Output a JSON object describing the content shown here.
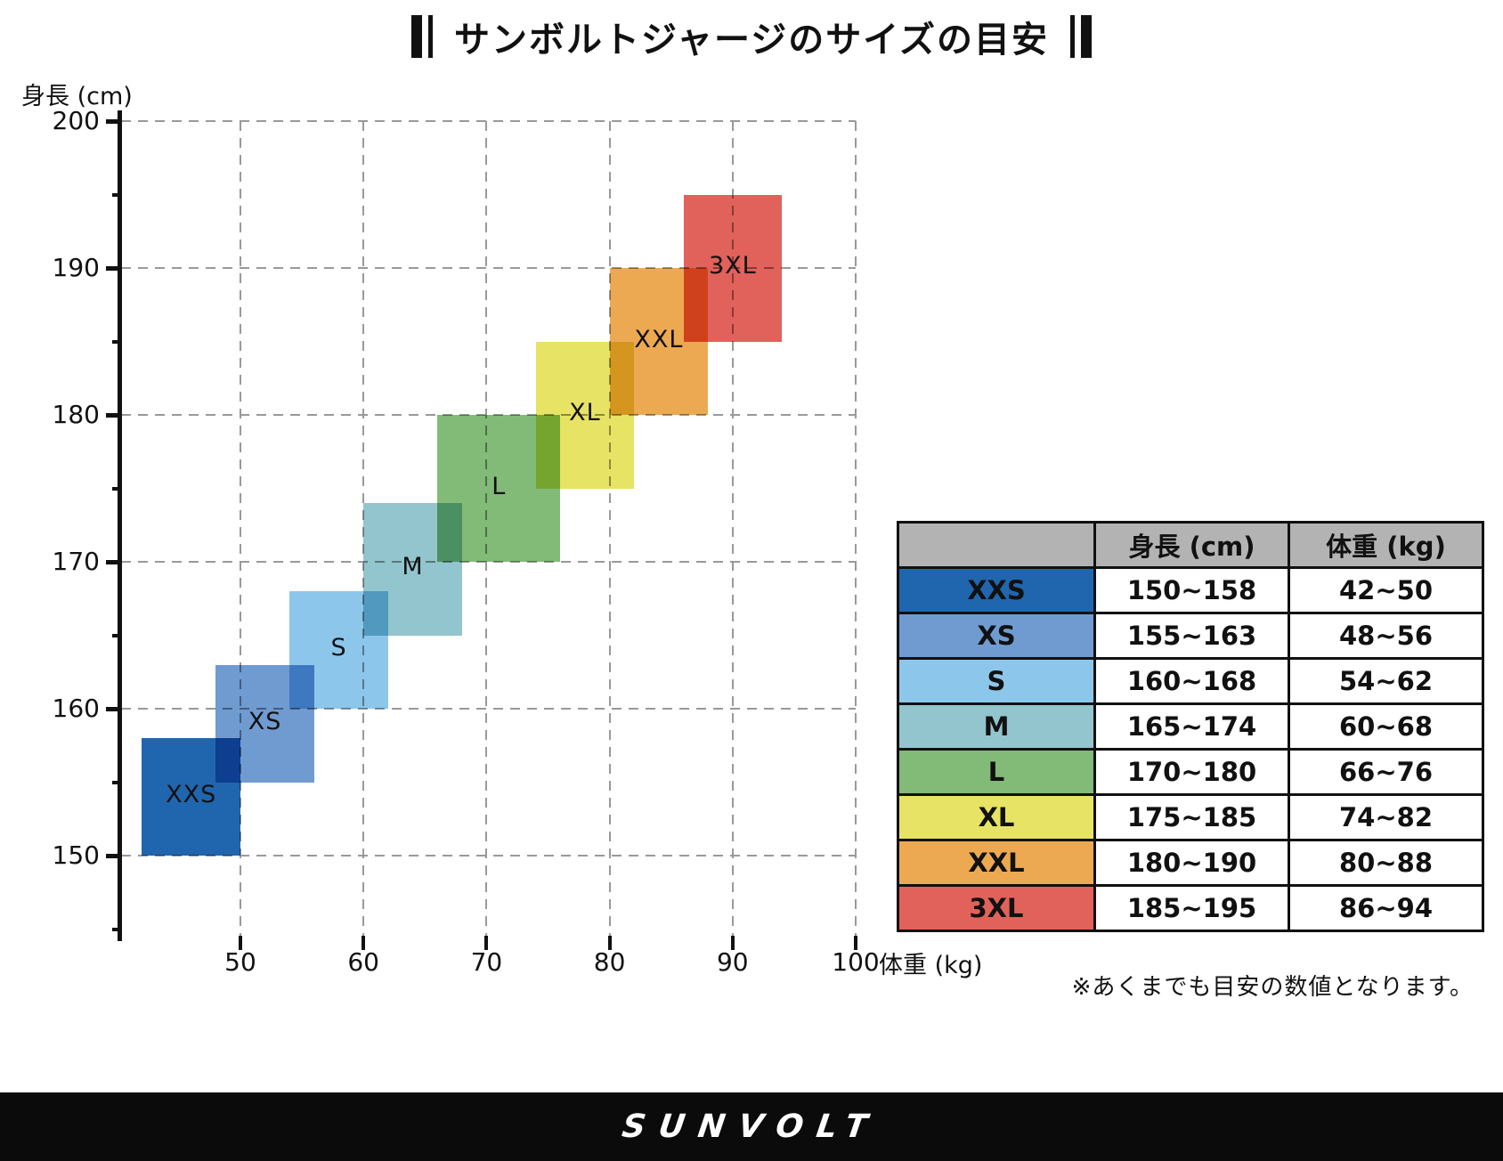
{
  "title": {
    "text": "サンボルトジャージのサイズの目安"
  },
  "chart_data": {
    "type": "scatter",
    "title": "サンボルトジャージのサイズの目安",
    "xlabel": "体重 (kg)",
    "ylabel": "身長 (cm)",
    "xlim": [
      42,
      100
    ],
    "ylim": [
      144,
      200
    ],
    "x_ticks": [
      50,
      60,
      70,
      80,
      90,
      100
    ],
    "y_ticks": [
      150,
      160,
      170,
      180,
      190,
      200
    ],
    "y_minor_ticks": [
      145,
      155,
      165,
      175,
      185,
      195
    ],
    "grid": true,
    "grid_color": "#999999",
    "legend": "none",
    "series": [
      {
        "name": "XXS",
        "x_range": [
          42,
          50
        ],
        "y_range": [
          150,
          158
        ],
        "color": "#2066ae"
      },
      {
        "name": "XS",
        "x_range": [
          48,
          56
        ],
        "y_range": [
          155,
          163
        ],
        "color": "#6f9bd1"
      },
      {
        "name": "S",
        "x_range": [
          54,
          62
        ],
        "y_range": [
          160,
          168
        ],
        "color": "#8dc6eb"
      },
      {
        "name": "M",
        "x_range": [
          60,
          68
        ],
        "y_range": [
          165,
          174
        ],
        "color": "#92c5ce"
      },
      {
        "name": "L",
        "x_range": [
          66,
          76
        ],
        "y_range": [
          170,
          180
        ],
        "color": "#82ba78"
      },
      {
        "name": "XL",
        "x_range": [
          74,
          82
        ],
        "y_range": [
          175,
          185
        ],
        "color": "#e7e364"
      },
      {
        "name": "XXL",
        "x_range": [
          80,
          88
        ],
        "y_range": [
          180,
          190
        ],
        "color": "#eca951"
      },
      {
        "name": "3XL",
        "x_range": [
          86,
          94
        ],
        "y_range": [
          185,
          195
        ],
        "color": "#e0625a"
      }
    ]
  },
  "table": {
    "headers": [
      "",
      "身長 (cm)",
      "体重 (kg)"
    ],
    "header_bg": "#b3b3b3",
    "rows": [
      {
        "size": "XXS",
        "height": "150~158",
        "weight": "42~50",
        "color": "#2066ae"
      },
      {
        "size": "XS",
        "height": "155~163",
        "weight": "48~56",
        "color": "#6f9bd1"
      },
      {
        "size": "S",
        "height": "160~168",
        "weight": "54~62",
        "color": "#8dc6eb"
      },
      {
        "size": "M",
        "height": "165~174",
        "weight": "60~68",
        "color": "#92c5ce"
      },
      {
        "size": "L",
        "height": "170~180",
        "weight": "66~76",
        "color": "#82ba78"
      },
      {
        "size": "XL",
        "height": "175~185",
        "weight": "74~82",
        "color": "#e7e364"
      },
      {
        "size": "XXL",
        "height": "180~190",
        "weight": "80~88",
        "color": "#eca951"
      },
      {
        "size": "3XL",
        "height": "185~195",
        "weight": "86~94",
        "color": "#e0625a"
      }
    ],
    "note": "※あくまでも目安の数値となります。"
  },
  "footer": {
    "logo": "SUNVOLT"
  }
}
